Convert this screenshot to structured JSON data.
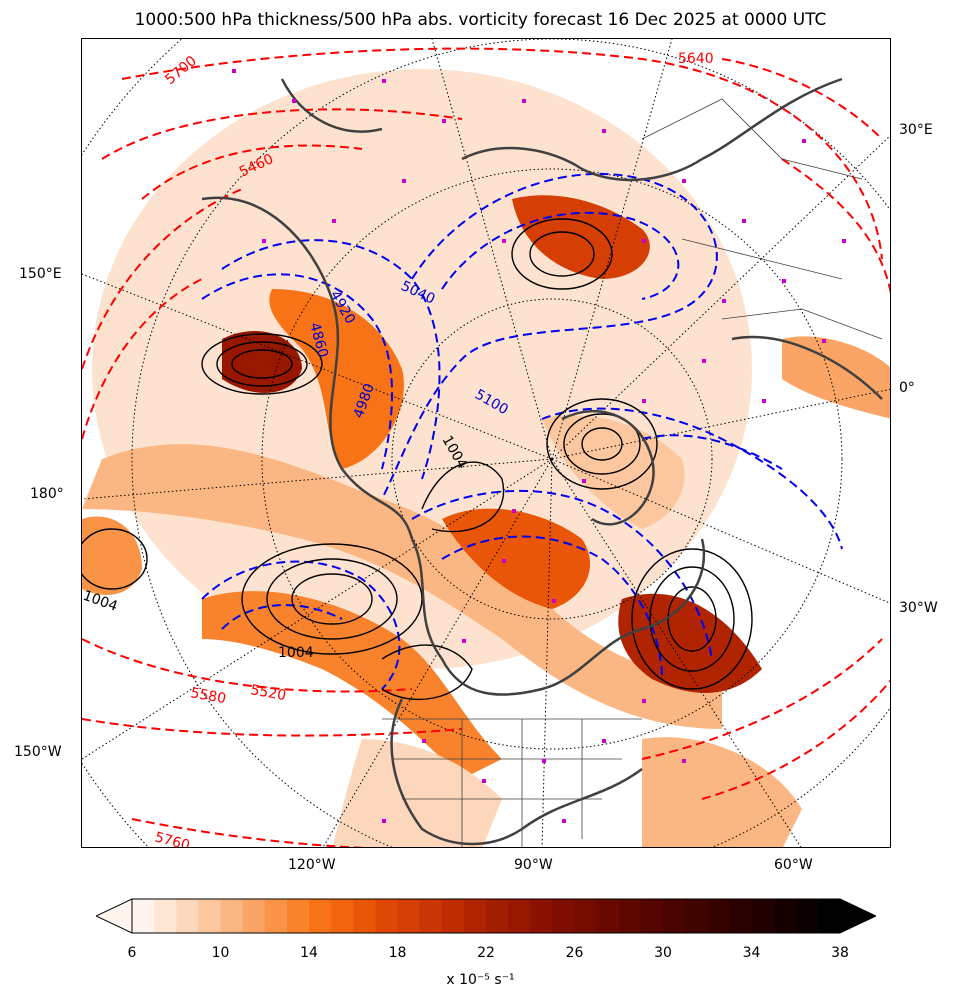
{
  "title": "1000:500 hPa thickness/500 hPa abs. vorticity forecast 16 Dec 2025 at 0000 UTC",
  "longitude_labels": {
    "right": [
      "30°E",
      "0°",
      "30°W"
    ],
    "left": [
      "150°E",
      "180°",
      "150°W"
    ],
    "bottom": [
      "120°W",
      "90°W",
      "60°W"
    ]
  },
  "thickness_labels_red": [
    "5700",
    "5460",
    "5640",
    "5580",
    "5520",
    "5760"
  ],
  "thickness_labels_blue": [
    "5040",
    "4920",
    "4980",
    "4860",
    "5100"
  ],
  "pressure_labels_black": [
    "1004",
    "1004",
    "1004"
  ],
  "colorbar": {
    "ticks": [
      "6",
      "10",
      "14",
      "18",
      "22",
      "26",
      "30",
      "34",
      "38"
    ],
    "unit": "x 10⁻⁵ s⁻¹",
    "colors": [
      "#fff5ee",
      "#ffe6d5",
      "#fdd7bb",
      "#fcc79f",
      "#fbb783",
      "#faa566",
      "#f99447",
      "#f8832c",
      "#f77316",
      "#f2640d",
      "#ea5608",
      "#e04905",
      "#d53e04",
      "#c93503",
      "#bd2c02",
      "#b02402",
      "#a31d01",
      "#971701",
      "#8b1200",
      "#7f0e00",
      "#740b00",
      "#690900",
      "#5e0700",
      "#540500",
      "#4a0400",
      "#3f0300",
      "#350200",
      "#2b0100",
      "#210000",
      "#170000",
      "#0d0000",
      "#000000"
    ]
  }
}
